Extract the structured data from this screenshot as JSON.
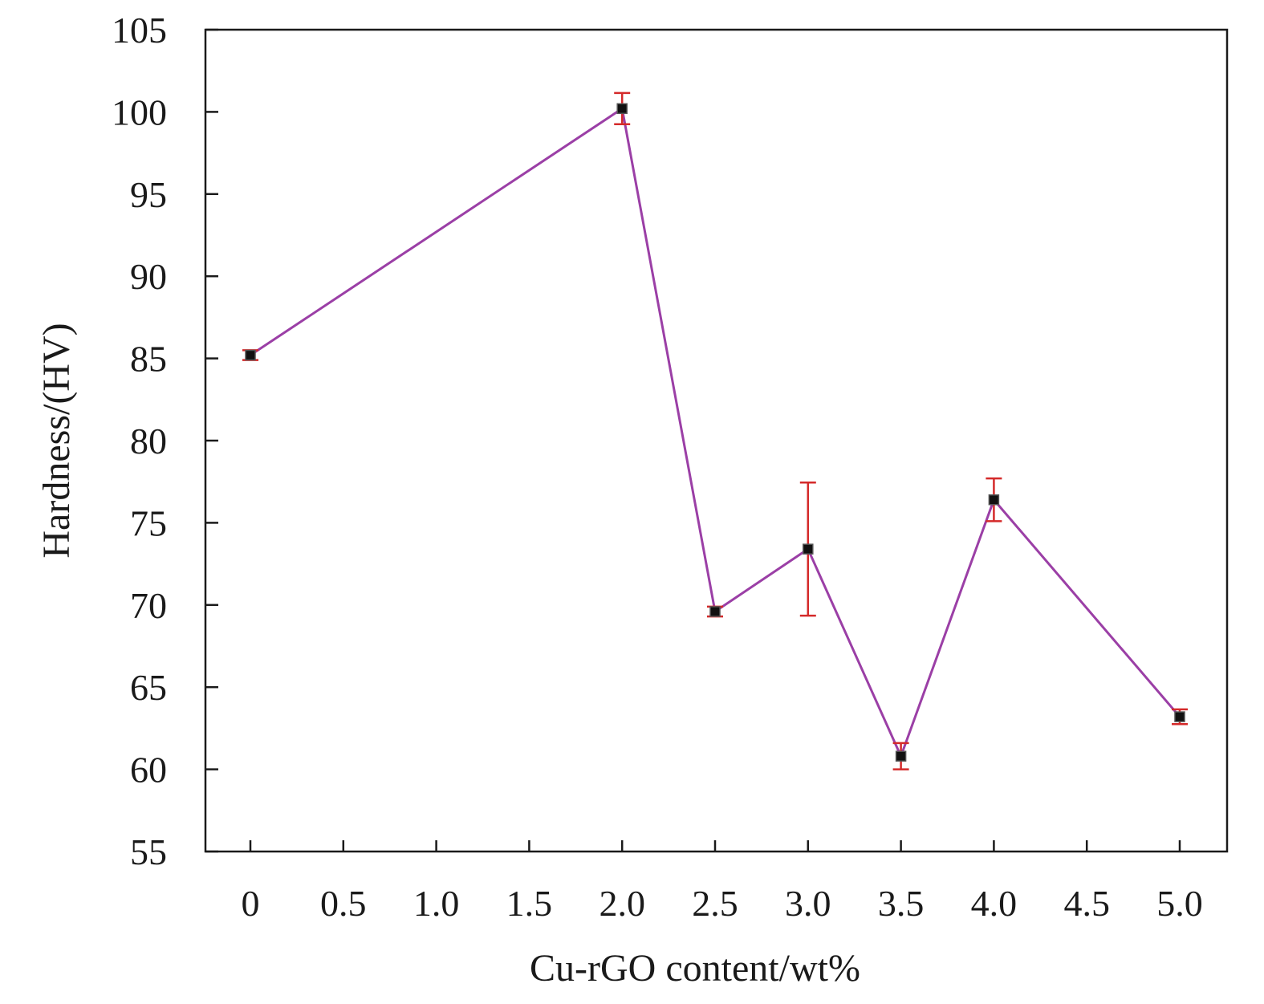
{
  "chart_data": {
    "type": "line",
    "xlabel": "Cu-rGO content/wt%",
    "ylabel": "Hardness/(HV)",
    "ylim": [
      55,
      105
    ],
    "yticks": [
      "55",
      "60",
      "65",
      "70",
      "75",
      "80",
      "85",
      "90",
      "95",
      "100",
      "105"
    ],
    "categories": [
      "0",
      "0.5",
      "1.0",
      "1.5",
      "2.0",
      "2.5",
      "3.0",
      "3.5",
      "4.0",
      "4.5",
      "5.0"
    ],
    "series": [
      {
        "points": [
          {
            "x": "0",
            "y": 85.2,
            "err": 0.3
          },
          {
            "x": "2.0",
            "y": 100.2,
            "err": 0.95
          },
          {
            "x": "2.5",
            "y": 69.6,
            "err": 0.3
          },
          {
            "x": "3.0",
            "y": 73.4,
            "err": 4.05
          },
          {
            "x": "3.5",
            "y": 60.8,
            "err": 0.8
          },
          {
            "x": "4.0",
            "y": 76.4,
            "err": 1.3
          },
          {
            "x": "5.0",
            "y": 63.2,
            "err": 0.45
          }
        ]
      }
    ],
    "colors": {
      "line": "#9b3fa6",
      "errorbar": "#d42a2a",
      "marker": "#111111"
    },
    "grid": false,
    "legend": "none"
  }
}
